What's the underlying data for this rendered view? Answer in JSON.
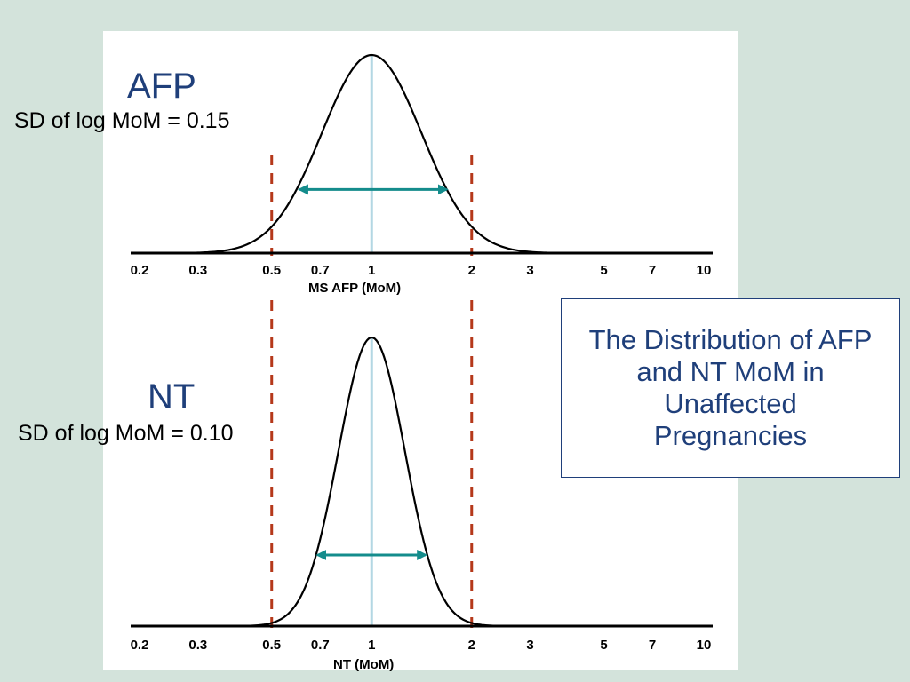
{
  "title": "The Distribution of AFP and NT MoM in Unaffected Pregnancies",
  "colors": {
    "background": "#d3e3db",
    "title_text": "#1f3f7a",
    "median_line": "#b3d7e3",
    "cutoff_line": "#b5381a",
    "arrow": "#148c8c",
    "curve": "#000000"
  },
  "chart_data": [
    {
      "type": "line",
      "label": "AFP",
      "annotation": "SD of log MoM = 0.15",
      "xlabel": "MS AFP (MoM)",
      "ylabel": "",
      "x_scale": "log",
      "xlim": [
        0.2,
        10
      ],
      "x_ticks": [
        0.2,
        0.3,
        0.5,
        0.7,
        1,
        2,
        3,
        5,
        7,
        10
      ],
      "x_tick_labels": [
        "0.2",
        "0.3",
        "0.5",
        "0.7",
        "1",
        "2",
        "3",
        "5",
        "7",
        "10"
      ],
      "distribution": "log-normal",
      "median": 1,
      "sd_log10": 0.15,
      "cutoff_lines": [
        0.5,
        2
      ],
      "arrow_range": [
        0.6,
        1.7
      ]
    },
    {
      "type": "line",
      "label": "NT",
      "annotation": "SD of log MoM = 0.10",
      "xlabel": "NT (MoM)",
      "ylabel": "",
      "x_scale": "log",
      "xlim": [
        0.2,
        10
      ],
      "x_ticks": [
        0.2,
        0.3,
        0.5,
        0.7,
        1,
        2,
        3,
        5,
        7,
        10
      ],
      "x_tick_labels": [
        "0.2",
        "0.3",
        "0.5",
        "0.7",
        "1",
        "2",
        "3",
        "5",
        "7",
        "10"
      ],
      "distribution": "log-normal",
      "median": 1,
      "sd_log10": 0.1,
      "cutoff_lines": [
        0.5,
        2
      ],
      "arrow_range": [
        0.68,
        1.47
      ]
    }
  ]
}
